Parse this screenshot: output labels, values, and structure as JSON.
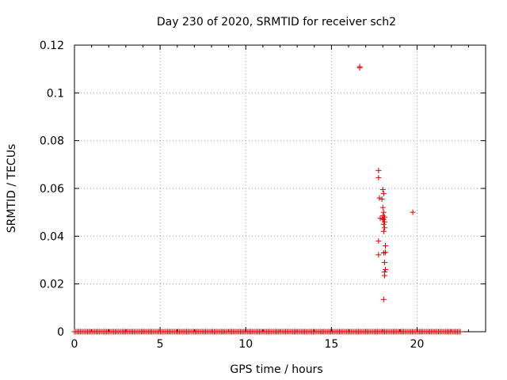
{
  "chart_data": {
    "type": "scatter",
    "title": "Day 230 of 2020, SRMTID for receiver sch2",
    "xlabel": "GPS time / hours",
    "ylabel": "SRMTID / TECUs",
    "xlim": [
      0,
      24
    ],
    "ylim": [
      0,
      0.12
    ],
    "xticks": [
      0,
      5,
      10,
      15,
      20
    ],
    "yticks": [
      0,
      0.02,
      0.04,
      0.06,
      0.08,
      0.1,
      0.12
    ],
    "xtick_labels": [
      "0",
      "5",
      "10",
      "15",
      "20"
    ],
    "ytick_labels": [
      "0",
      "0.02",
      "0.04",
      "0.06",
      "0.08",
      "0.1",
      "0.12"
    ],
    "grid": true,
    "marker": "+",
    "color": "#dd0000",
    "series": [
      {
        "name": "SRMTID",
        "points": [
          [
            16.65,
            0.111
          ],
          [
            16.65,
            0.1105
          ],
          [
            17.75,
            0.0675
          ],
          [
            17.75,
            0.0645
          ],
          [
            17.8,
            0.056
          ],
          [
            18.0,
            0.0595
          ],
          [
            18.05,
            0.0578
          ],
          [
            17.95,
            0.0555
          ],
          [
            18.0,
            0.052
          ],
          [
            18.05,
            0.05
          ],
          [
            18.0,
            0.0485
          ],
          [
            18.1,
            0.048
          ],
          [
            17.85,
            0.0475
          ],
          [
            18.0,
            0.0472
          ],
          [
            18.05,
            0.047
          ],
          [
            18.1,
            0.046
          ],
          [
            18.05,
            0.045
          ],
          [
            18.1,
            0.0435
          ],
          [
            18.05,
            0.042
          ],
          [
            17.75,
            0.038
          ],
          [
            18.15,
            0.036
          ],
          [
            18.05,
            0.033
          ],
          [
            18.15,
            0.0332
          ],
          [
            17.75,
            0.0322
          ],
          [
            18.1,
            0.029
          ],
          [
            18.15,
            0.026
          ],
          [
            18.1,
            0.025
          ],
          [
            18.1,
            0.0235
          ],
          [
            18.05,
            0.0135
          ],
          [
            19.75,
            0.05
          ]
        ]
      }
    ]
  }
}
